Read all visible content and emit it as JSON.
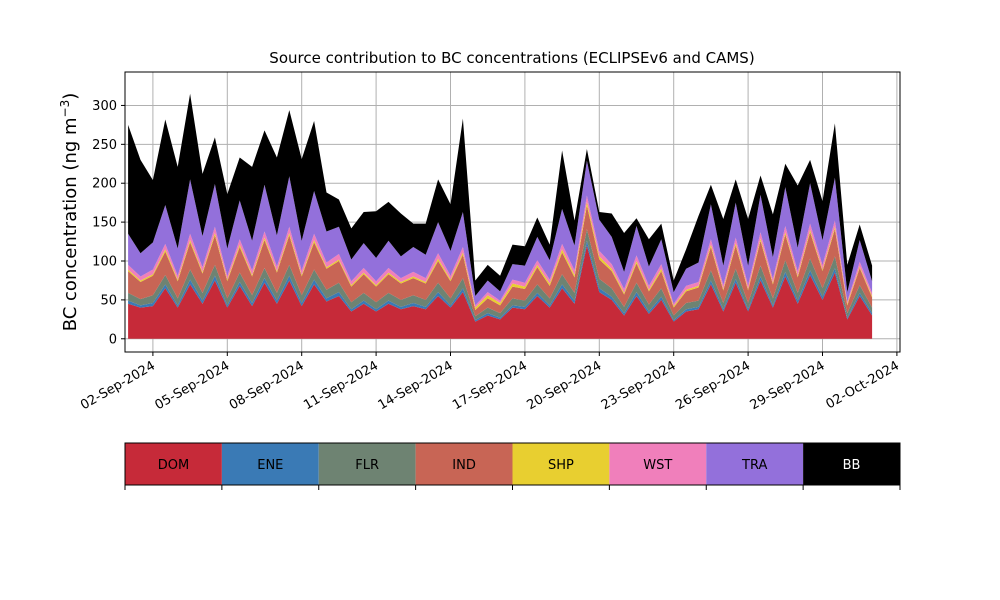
{
  "chart_data": {
    "type": "area",
    "stacked": true,
    "title": "Source contribution to BC concentrations (ECLIPSEv6 and CAMS)",
    "ylabel_main": "BC concentration (ng m",
    "ylabel_sup": "−3",
    "ylabel_close": ")",
    "xlabel": "",
    "ylim": [
      -17,
      343
    ],
    "xlim": [
      "2024-08-31T21:00",
      "2024-10-02T03:00"
    ],
    "grid": true,
    "y_ticks": [
      0,
      50,
      100,
      150,
      200,
      250,
      300
    ],
    "x_ticks": [
      {
        "date": "2024-09-02",
        "label": "02-Sep-2024"
      },
      {
        "date": "2024-09-05",
        "label": "05-Sep-2024"
      },
      {
        "date": "2024-09-08",
        "label": "08-Sep-2024"
      },
      {
        "date": "2024-09-11",
        "label": "11-Sep-2024"
      },
      {
        "date": "2024-09-14",
        "label": "14-Sep-2024"
      },
      {
        "date": "2024-09-17",
        "label": "17-Sep-2024"
      },
      {
        "date": "2024-09-20",
        "label": "20-Sep-2024"
      },
      {
        "date": "2024-09-23",
        "label": "23-Sep-2024"
      },
      {
        "date": "2024-09-26",
        "label": "26-Sep-2024"
      },
      {
        "date": "2024-09-29",
        "label": "29-Sep-2024"
      },
      {
        "date": "2024-10-02",
        "label": "02-Oct-2024"
      }
    ],
    "x": [
      "2024-09-01T00:00",
      "2024-09-01T12:00",
      "2024-09-02T00:00",
      "2024-09-02T12:00",
      "2024-09-03T00:00",
      "2024-09-03T12:00",
      "2024-09-04T00:00",
      "2024-09-04T12:00",
      "2024-09-05T00:00",
      "2024-09-05T12:00",
      "2024-09-06T00:00",
      "2024-09-06T12:00",
      "2024-09-07T00:00",
      "2024-09-07T12:00",
      "2024-09-08T00:00",
      "2024-09-08T12:00",
      "2024-09-09T00:00",
      "2024-09-09T12:00",
      "2024-09-10T00:00",
      "2024-09-10T12:00",
      "2024-09-11T00:00",
      "2024-09-11T12:00",
      "2024-09-12T00:00",
      "2024-09-12T12:00",
      "2024-09-13T00:00",
      "2024-09-13T12:00",
      "2024-09-14T00:00",
      "2024-09-14T12:00",
      "2024-09-15T00:00",
      "2024-09-15T12:00",
      "2024-09-16T00:00",
      "2024-09-16T12:00",
      "2024-09-17T00:00",
      "2024-09-17T12:00",
      "2024-09-18T00:00",
      "2024-09-18T12:00",
      "2024-09-19T00:00",
      "2024-09-19T12:00",
      "2024-09-20T00:00",
      "2024-09-20T12:00",
      "2024-09-21T00:00",
      "2024-09-21T12:00",
      "2024-09-22T00:00",
      "2024-09-22T12:00",
      "2024-09-23T00:00",
      "2024-09-23T12:00",
      "2024-09-24T00:00",
      "2024-09-24T12:00",
      "2024-09-25T00:00",
      "2024-09-25T12:00",
      "2024-09-26T00:00",
      "2024-09-26T12:00",
      "2024-09-27T00:00",
      "2024-09-27T12:00",
      "2024-09-28T00:00",
      "2024-09-28T12:00",
      "2024-09-29T00:00",
      "2024-09-29T12:00",
      "2024-09-30T00:00",
      "2024-09-30T12:00",
      "2024-10-01T00:00"
    ],
    "series": [
      {
        "name": "DOM",
        "color": "#c62a39",
        "values": [
          45,
          40,
          42,
          65,
          40,
          70,
          45,
          75,
          40,
          68,
          42,
          72,
          45,
          75,
          42,
          70,
          48,
          55,
          35,
          45,
          35,
          45,
          38,
          42,
          38,
          55,
          40,
          60,
          22,
          30,
          25,
          40,
          38,
          55,
          40,
          65,
          45,
          120,
          60,
          50,
          30,
          55,
          32,
          50,
          22,
          35,
          38,
          70,
          35,
          72,
          35,
          75,
          40,
          80,
          45,
          82,
          50,
          85,
          25,
          55,
          30
        ]
      },
      {
        "name": "ENE",
        "color": "#3a7ab5",
        "values": [
          4,
          3,
          4,
          5,
          3,
          6,
          4,
          6,
          3,
          5,
          4,
          6,
          4,
          6,
          4,
          6,
          4,
          5,
          3,
          4,
          3,
          4,
          3,
          4,
          3,
          5,
          3,
          5,
          2,
          3,
          2,
          3,
          3,
          4,
          3,
          5,
          4,
          6,
          5,
          4,
          3,
          5,
          3,
          4,
          2,
          3,
          3,
          5,
          3,
          5,
          3,
          5,
          3,
          6,
          4,
          6,
          4,
          6,
          2,
          4,
          3
        ]
      },
      {
        "name": "FLR",
        "color": "#6e8372",
        "values": [
          10,
          8,
          10,
          12,
          9,
          13,
          10,
          14,
          9,
          12,
          10,
          13,
          10,
          14,
          10,
          13,
          11,
          12,
          9,
          10,
          9,
          10,
          9,
          10,
          9,
          12,
          9,
          13,
          5,
          7,
          6,
          9,
          8,
          11,
          9,
          13,
          10,
          15,
          12,
          11,
          8,
          12,
          9,
          11,
          6,
          8,
          8,
          13,
          8,
          13,
          8,
          14,
          9,
          15,
          10,
          15,
          11,
          15,
          6,
          10,
          7
        ]
      },
      {
        "name": "IND",
        "color": "#c86555",
        "values": [
          28,
          22,
          25,
          30,
          22,
          35,
          25,
          38,
          22,
          33,
          24,
          36,
          26,
          38,
          24,
          35,
          27,
          28,
          20,
          24,
          20,
          24,
          21,
          22,
          21,
          28,
          22,
          30,
          8,
          12,
          10,
          15,
          15,
          22,
          16,
          28,
          20,
          30,
          25,
          22,
          16,
          25,
          17,
          22,
          10,
          15,
          17,
          30,
          16,
          30,
          16,
          32,
          18,
          33,
          20,
          34,
          22,
          35,
          10,
          22,
          13
        ]
      },
      {
        "name": "SHP",
        "color": "#e8cf30",
        "values": [
          2,
          2,
          2,
          3,
          2,
          3,
          2,
          3,
          2,
          3,
          2,
          3,
          2,
          3,
          2,
          3,
          2,
          2,
          2,
          2,
          2,
          2,
          2,
          2,
          2,
          3,
          2,
          3,
          3,
          4,
          3,
          4,
          3,
          3,
          3,
          4,
          3,
          5,
          4,
          3,
          2,
          3,
          2,
          3,
          2,
          2,
          2,
          3,
          2,
          3,
          2,
          3,
          2,
          3,
          2,
          3,
          2,
          3,
          2,
          2,
          2
        ]
      },
      {
        "name": "WST",
        "color": "#f07fbb",
        "values": [
          6,
          5,
          6,
          7,
          5,
          8,
          6,
          8,
          5,
          7,
          6,
          8,
          6,
          8,
          6,
          8,
          6,
          7,
          5,
          6,
          5,
          6,
          5,
          6,
          5,
          7,
          5,
          7,
          3,
          4,
          3,
          5,
          5,
          6,
          5,
          7,
          6,
          8,
          7,
          6,
          5,
          7,
          5,
          6,
          3,
          5,
          5,
          7,
          5,
          7,
          5,
          8,
          5,
          8,
          6,
          8,
          6,
          8,
          3,
          6,
          4
        ]
      },
      {
        "name": "TRA",
        "color": "#9370db",
        "values": [
          40,
          30,
          35,
          50,
          35,
          70,
          40,
          55,
          35,
          50,
          38,
          60,
          40,
          65,
          38,
          55,
          40,
          35,
          28,
          32,
          30,
          35,
          28,
          32,
          30,
          40,
          32,
          45,
          12,
          15,
          12,
          20,
          22,
          30,
          25,
          45,
          32,
          45,
          40,
          35,
          22,
          38,
          25,
          32,
          15,
          22,
          25,
          45,
          25,
          45,
          25,
          48,
          28,
          50,
          30,
          52,
          32,
          55,
          12,
          28,
          15
        ]
      },
      {
        "name": "BB",
        "color": "#000000",
        "values": [
          140,
          120,
          80,
          110,
          105,
          110,
          80,
          60,
          70,
          55,
          95,
          70,
          100,
          85,
          105,
          90,
          50,
          35,
          40,
          40,
          60,
          50,
          55,
          30,
          40,
          55,
          60,
          120,
          20,
          20,
          20,
          25,
          25,
          25,
          20,
          75,
          32,
          15,
          10,
          30,
          50,
          10,
          35,
          20,
          15,
          25,
          60,
          25,
          60,
          30,
          60,
          25,
          55,
          30,
          80,
          30,
          50,
          70,
          35,
          20,
          20
        ]
      }
    ],
    "legend": {
      "placement": "bottom-colorbar",
      "entries": [
        {
          "label": "DOM",
          "color": "#c62a39",
          "text_color": "#000000"
        },
        {
          "label": "ENE",
          "color": "#3a7ab5",
          "text_color": "#000000"
        },
        {
          "label": "FLR",
          "color": "#6e8372",
          "text_color": "#000000"
        },
        {
          "label": "IND",
          "color": "#c86555",
          "text_color": "#000000"
        },
        {
          "label": "SHP",
          "color": "#e8cf30",
          "text_color": "#000000"
        },
        {
          "label": "WST",
          "color": "#f07fbb",
          "text_color": "#000000"
        },
        {
          "label": "TRA",
          "color": "#9370db",
          "text_color": "#000000"
        },
        {
          "label": "BB",
          "color": "#000000",
          "text_color": "#ffffff"
        }
      ]
    }
  }
}
